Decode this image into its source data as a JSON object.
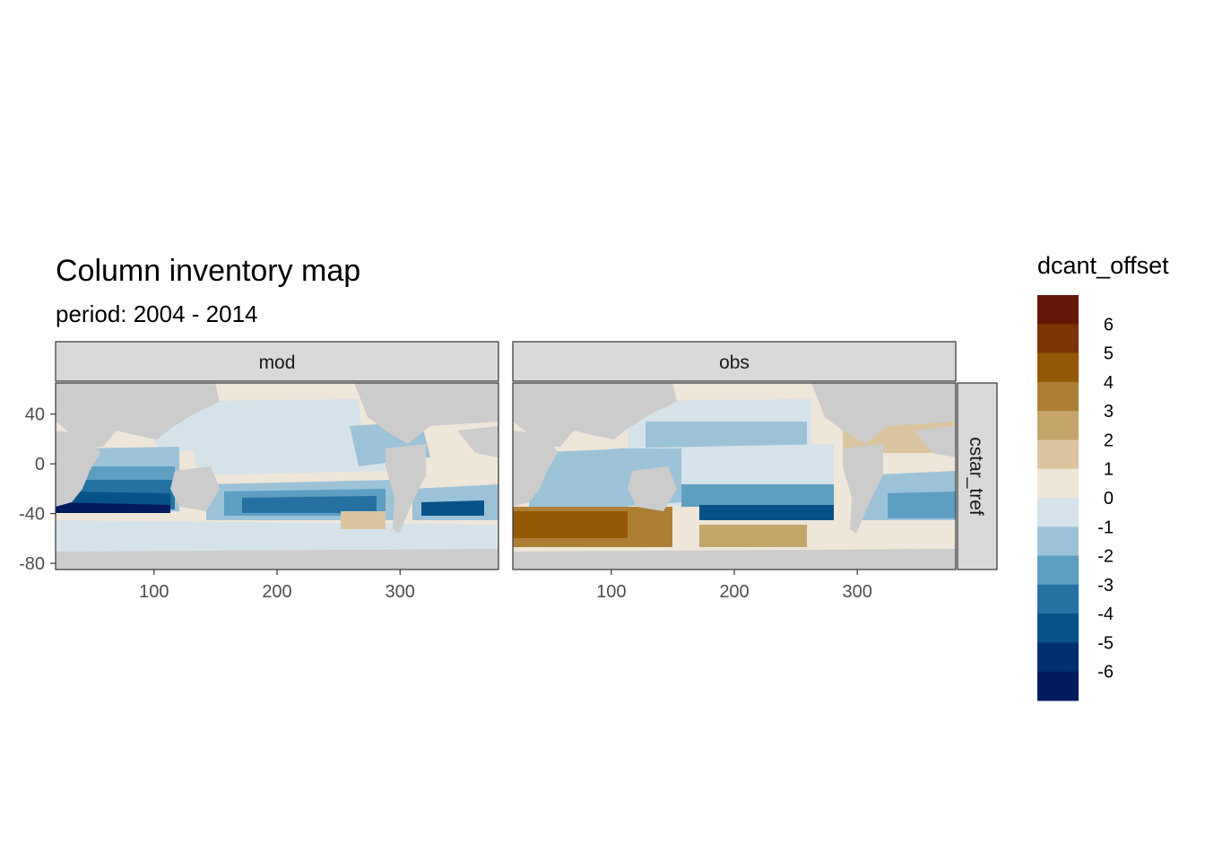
{
  "title": "Column inventory map",
  "subtitle": "period: 2004 - 2014",
  "facets": {
    "columns": [
      "mod",
      "obs"
    ],
    "row": "cstar_tref"
  },
  "axes": {
    "x_ticks": [
      "100",
      "200",
      "300"
    ],
    "y_ticks": [
      "40",
      "0",
      "-40",
      "-80"
    ],
    "x_range": [
      20,
      380
    ],
    "y_range": [
      -85,
      65
    ]
  },
  "legend": {
    "title": "dcant_offset",
    "labels": [
      "6",
      "5",
      "4",
      "3",
      "2",
      "1",
      "0",
      "-1",
      "-2",
      "-3",
      "-4",
      "-5",
      "-6"
    ],
    "colors": [
      "#67160a",
      "#7d3303",
      "#935904",
      "#ad7f34",
      "#c6a56b",
      "#dbc59e",
      "#eee6d8",
      "#d6e2ea",
      "#9cc2d8",
      "#5d9ec1",
      "#2572a2",
      "#075288",
      "#022f71",
      "#021a5e"
    ]
  },
  "colors": {
    "land": "#cccccc",
    "strip_fill": "#d9d9d9",
    "frame": "#333333"
  }
}
